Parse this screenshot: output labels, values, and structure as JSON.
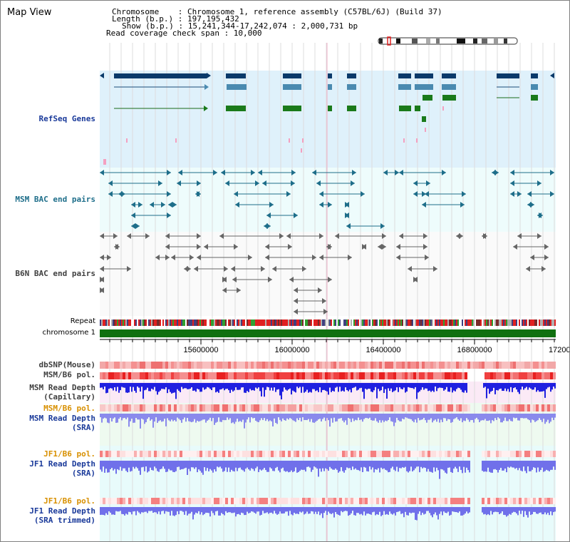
{
  "page": {
    "title": "Map View"
  },
  "info": {
    "chromosome_line": "Chromosome    : Chromosome 1, reference assembly (C57BL/6J) (Build 37)",
    "length_line": "Length (b.p.) : 197,195,432",
    "show_line": "Show (b.p.) : 15,241,344-17,242,074 : 2,000,731 bp",
    "coverage_line": "Read coverage check span : 10,000"
  },
  "axis": {
    "tick_labels": [
      "15600000",
      "16000000",
      "16400000",
      "16800000",
      "17200"
    ]
  },
  "tracks": {
    "refseq": {
      "label": "RefSeq Genes"
    },
    "msm_bac": {
      "label": "MSM BAC end pairs"
    },
    "b6n_bac": {
      "label": "B6N BAC end pairs"
    },
    "repeat": {
      "label": "Repeat"
    },
    "chromosome": {
      "label": "chromosome 1"
    },
    "dbsnp": {
      "label": "dbSNP(Mouse)"
    },
    "msm_pol": {
      "label": "MSM/B6 pol."
    },
    "msm_depth_cap": {
      "label1": "MSM Read Depth",
      "label2": "(Capillary)"
    },
    "msm_pol_sra": {
      "label": "MSM/B6 pol."
    },
    "msm_depth_sra": {
      "label1": "MSM Read Depth",
      "label2": "(SRA)"
    },
    "jf1_pol": {
      "label": "JF1/B6 pol."
    },
    "jf1_depth": {
      "label1": "JF1 Read Depth",
      "label2": "(SRA)"
    },
    "jf1_pol_trim": {
      "label": "JF1/B6 pol."
    },
    "jf1_depth_trim": {
      "label1": "JF1 Read Depth",
      "label2": "(SRA trimmed)"
    }
  },
  "colors": {
    "refseq_bg": "#dff1fb",
    "msm_bg": "#eefcfc",
    "gene_dark": "#0a3a6a",
    "gene_mid": "#4a8ab0",
    "gene_green": "#1a7a1a",
    "msm_pair": "#1e6e8a",
    "b6n_pair": "#666666",
    "chromosome": "#107010",
    "label_blue": "#1a3a9a",
    "label_orange": "#d89000",
    "label_gray": "#404040"
  }
}
